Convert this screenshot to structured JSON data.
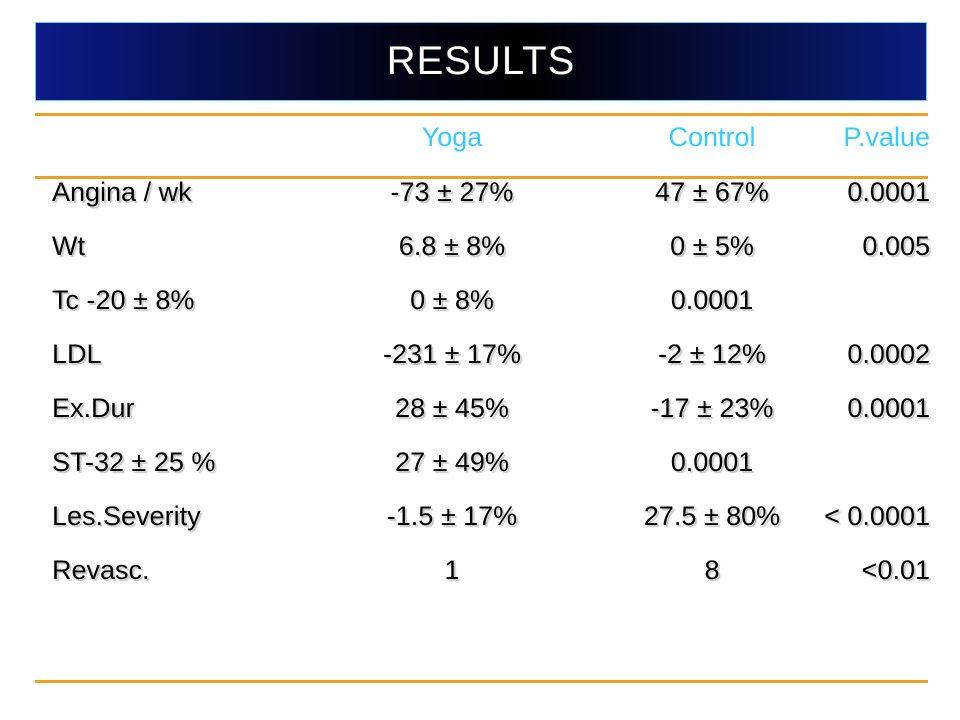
{
  "title": "RESULTS",
  "headers": [
    "",
    "Yoga",
    "Control",
    "P.value"
  ],
  "rows": [
    [
      "Angina / wk",
      "-73 ± 27%",
      "47 ± 67%",
      "0.0001"
    ],
    [
      "Wt",
      "6.8 ± 8%",
      "0 ± 5%",
      "0.005"
    ],
    [
      "Tc -20 ± 8%",
      "0 ± 8%",
      "0.0001",
      ""
    ],
    [
      "LDL",
      "-231 ± 17%",
      "-2 ± 12%",
      "0.0002"
    ],
    [
      "Ex.Dur",
      "28 ± 45%",
      "-17 ± 23%",
      "0.0001"
    ],
    [
      "ST-32 ± 25 %",
      "27 ± 49%",
      "0.0001",
      ""
    ],
    [
      "Les.Severity",
      "-1.5 ± 17%",
      "27.5 ± 80%",
      "< 0.0001"
    ],
    [
      "Revasc.",
      "1",
      "8",
      "<0.01"
    ]
  ],
  "colors": {
    "header_text": "#33ccff",
    "rule": "#f0a020",
    "title_bar_dark": "#000000",
    "title_bar_blue": "#0c1a8a"
  }
}
